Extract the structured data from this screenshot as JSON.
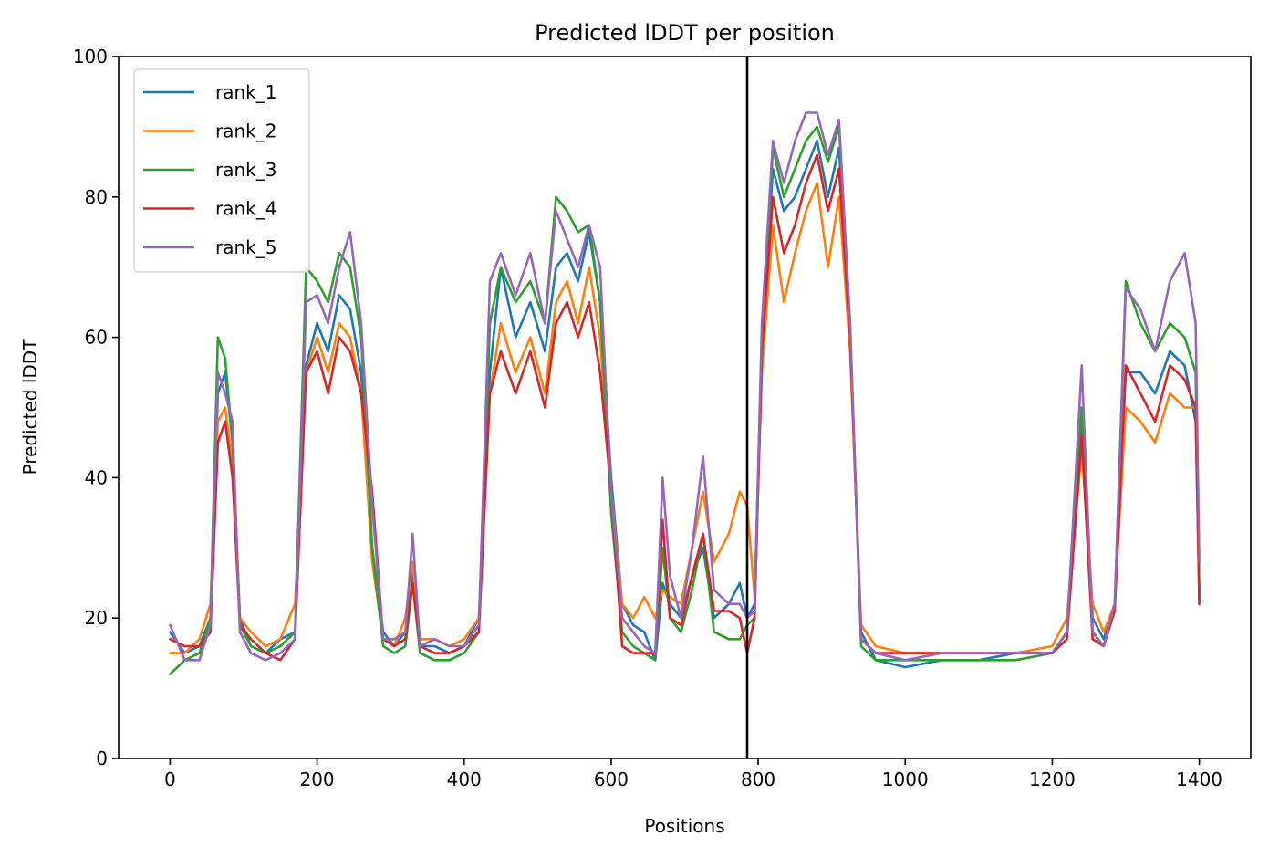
{
  "chart_data": {
    "type": "line",
    "title": "Predicted lDDT per position",
    "xlabel": "Positions",
    "ylabel": "Predicted lDDT",
    "xlim": [
      -70,
      1470
    ],
    "ylim": [
      0,
      100
    ],
    "xticks": [
      0,
      200,
      400,
      600,
      800,
      1000,
      1200,
      1400
    ],
    "yticks": [
      0,
      20,
      40,
      60,
      80,
      100
    ],
    "legend_position": "upper-left",
    "grid": false,
    "vlines": [
      {
        "x": 785,
        "color": "#000000"
      }
    ],
    "series": [
      {
        "name": "rank_1",
        "color": "#1f77b4",
        "x": [
          0,
          20,
          40,
          55,
          65,
          75,
          85,
          95,
          110,
          130,
          150,
          170,
          185,
          200,
          215,
          230,
          245,
          260,
          275,
          290,
          305,
          320,
          330,
          340,
          360,
          380,
          400,
          420,
          435,
          450,
          470,
          490,
          510,
          525,
          540,
          555,
          570,
          585,
          600,
          615,
          630,
          645,
          660,
          670,
          680,
          695,
          710,
          725,
          740,
          760,
          775,
          785,
          795,
          805,
          820,
          835,
          850,
          865,
          880,
          895,
          910,
          925,
          940,
          960,
          1000,
          1050,
          1100,
          1150,
          1200,
          1220,
          1240,
          1255,
          1270,
          1285,
          1300,
          1320,
          1340,
          1360,
          1380,
          1395,
          1400
        ],
        "y": [
          18,
          15,
          16,
          20,
          52,
          55,
          45,
          20,
          16,
          15,
          17,
          18,
          56,
          62,
          58,
          66,
          64,
          55,
          30,
          18,
          16,
          18,
          27,
          16,
          16,
          15,
          16,
          20,
          55,
          70,
          60,
          65,
          58,
          70,
          72,
          68,
          75,
          65,
          40,
          22,
          19,
          18,
          14,
          25,
          22,
          20,
          26,
          30,
          20,
          22,
          25,
          20,
          22,
          60,
          84,
          78,
          80,
          84,
          88,
          80,
          87,
          60,
          18,
          14,
          13,
          14,
          14,
          15,
          15,
          18,
          48,
          20,
          17,
          22,
          55,
          55,
          52,
          58,
          56,
          48,
          24
        ]
      },
      {
        "name": "rank_2",
        "color": "#ff7f0e",
        "x": [
          0,
          20,
          40,
          55,
          65,
          75,
          85,
          95,
          110,
          130,
          150,
          170,
          185,
          200,
          215,
          230,
          245,
          260,
          275,
          290,
          305,
          320,
          330,
          340,
          360,
          380,
          400,
          420,
          435,
          450,
          470,
          490,
          510,
          525,
          540,
          555,
          570,
          585,
          600,
          615,
          630,
          645,
          660,
          670,
          680,
          695,
          710,
          725,
          740,
          760,
          775,
          785,
          795,
          805,
          820,
          835,
          850,
          865,
          880,
          895,
          910,
          925,
          940,
          960,
          1000,
          1050,
          1100,
          1150,
          1200,
          1220,
          1240,
          1255,
          1270,
          1285,
          1300,
          1320,
          1340,
          1360,
          1380,
          1395,
          1400
        ],
        "y": [
          15,
          15,
          17,
          22,
          48,
          50,
          42,
          20,
          18,
          16,
          17,
          22,
          55,
          60,
          55,
          62,
          60,
          52,
          28,
          17,
          16,
          20,
          28,
          17,
          17,
          16,
          17,
          20,
          52,
          62,
          55,
          60,
          52,
          65,
          68,
          62,
          70,
          60,
          38,
          22,
          20,
          23,
          20,
          24,
          23,
          22,
          30,
          38,
          28,
          32,
          38,
          36,
          23,
          55,
          76,
          65,
          72,
          78,
          82,
          70,
          80,
          58,
          19,
          16,
          15,
          15,
          15,
          15,
          16,
          20,
          44,
          22,
          18,
          22,
          50,
          48,
          45,
          52,
          50,
          50,
          22
        ]
      },
      {
        "name": "rank_3",
        "color": "#2ca02c",
        "x": [
          0,
          20,
          40,
          55,
          65,
          75,
          85,
          95,
          110,
          130,
          150,
          170,
          185,
          200,
          215,
          230,
          245,
          260,
          275,
          290,
          305,
          320,
          330,
          340,
          360,
          380,
          400,
          420,
          435,
          450,
          470,
          490,
          510,
          525,
          540,
          555,
          570,
          585,
          600,
          615,
          630,
          645,
          660,
          670,
          680,
          695,
          710,
          725,
          740,
          760,
          775,
          785,
          795,
          805,
          820,
          835,
          850,
          865,
          880,
          895,
          910,
          925,
          940,
          960,
          1000,
          1050,
          1100,
          1150,
          1200,
          1220,
          1240,
          1255,
          1270,
          1285,
          1300,
          1320,
          1340,
          1360,
          1380,
          1395,
          1400
        ],
        "y": [
          12,
          14,
          15,
          20,
          60,
          57,
          45,
          19,
          16,
          15,
          16,
          18,
          70,
          68,
          65,
          72,
          70,
          60,
          30,
          16,
          15,
          16,
          25,
          15,
          14,
          14,
          15,
          18,
          62,
          70,
          65,
          68,
          62,
          80,
          78,
          75,
          76,
          65,
          35,
          18,
          16,
          15,
          14,
          30,
          20,
          18,
          24,
          32,
          18,
          17,
          17,
          19,
          20,
          58,
          87,
          80,
          84,
          88,
          90,
          85,
          90,
          62,
          16,
          14,
          14,
          14,
          14,
          14,
          15,
          18,
          50,
          18,
          16,
          22,
          68,
          62,
          58,
          62,
          60,
          55,
          23
        ]
      },
      {
        "name": "rank_4",
        "color": "#d62728",
        "x": [
          0,
          20,
          40,
          55,
          65,
          75,
          85,
          95,
          110,
          130,
          150,
          170,
          185,
          200,
          215,
          230,
          245,
          260,
          275,
          290,
          305,
          320,
          330,
          340,
          360,
          380,
          400,
          420,
          435,
          450,
          470,
          490,
          510,
          525,
          540,
          555,
          570,
          585,
          600,
          615,
          630,
          645,
          660,
          670,
          680,
          695,
          710,
          725,
          740,
          760,
          775,
          785,
          795,
          805,
          820,
          835,
          850,
          865,
          880,
          895,
          910,
          925,
          940,
          960,
          1000,
          1050,
          1100,
          1150,
          1200,
          1220,
          1240,
          1255,
          1270,
          1285,
          1300,
          1320,
          1340,
          1360,
          1380,
          1395,
          1400
        ],
        "y": [
          17,
          16,
          16,
          18,
          45,
          48,
          40,
          19,
          17,
          15,
          14,
          17,
          55,
          58,
          52,
          60,
          58,
          52,
          38,
          17,
          16,
          17,
          25,
          16,
          15,
          15,
          16,
          18,
          52,
          58,
          52,
          58,
          50,
          62,
          65,
          60,
          65,
          55,
          38,
          16,
          15,
          15,
          15,
          34,
          20,
          19,
          26,
          32,
          21,
          21,
          20,
          15,
          20,
          58,
          80,
          72,
          76,
          82,
          86,
          78,
          84,
          60,
          17,
          15,
          15,
          15,
          15,
          15,
          15,
          17,
          46,
          17,
          16,
          21,
          56,
          52,
          48,
          56,
          54,
          50,
          22
        ]
      },
      {
        "name": "rank_5",
        "color": "#9467bd",
        "x": [
          0,
          20,
          40,
          55,
          65,
          75,
          85,
          95,
          110,
          130,
          150,
          170,
          185,
          200,
          215,
          230,
          245,
          260,
          275,
          290,
          305,
          320,
          330,
          340,
          360,
          380,
          400,
          420,
          435,
          450,
          470,
          490,
          510,
          525,
          540,
          555,
          570,
          585,
          600,
          615,
          630,
          645,
          660,
          670,
          680,
          695,
          710,
          725,
          740,
          760,
          775,
          785,
          795,
          805,
          820,
          835,
          850,
          865,
          880,
          895,
          910,
          925,
          940,
          960,
          1000,
          1050,
          1100,
          1150,
          1200,
          1220,
          1240,
          1255,
          1270,
          1285,
          1300,
          1320,
          1340,
          1360,
          1380,
          1395,
          1400
        ],
        "y": [
          19,
          14,
          14,
          19,
          55,
          52,
          48,
          18,
          15,
          14,
          15,
          17,
          65,
          66,
          62,
          70,
          75,
          62,
          36,
          17,
          17,
          18,
          32,
          16,
          17,
          16,
          16,
          19,
          68,
          72,
          66,
          72,
          62,
          78,
          74,
          70,
          76,
          70,
          38,
          20,
          18,
          16,
          15,
          40,
          26,
          20,
          30,
          43,
          24,
          22,
          22,
          20,
          21,
          62,
          88,
          82,
          88,
          92,
          92,
          86,
          91,
          62,
          17,
          15,
          14,
          15,
          15,
          15,
          15,
          18,
          56,
          18,
          16,
          22,
          67,
          64,
          58,
          68,
          72,
          62,
          28
        ]
      }
    ]
  }
}
